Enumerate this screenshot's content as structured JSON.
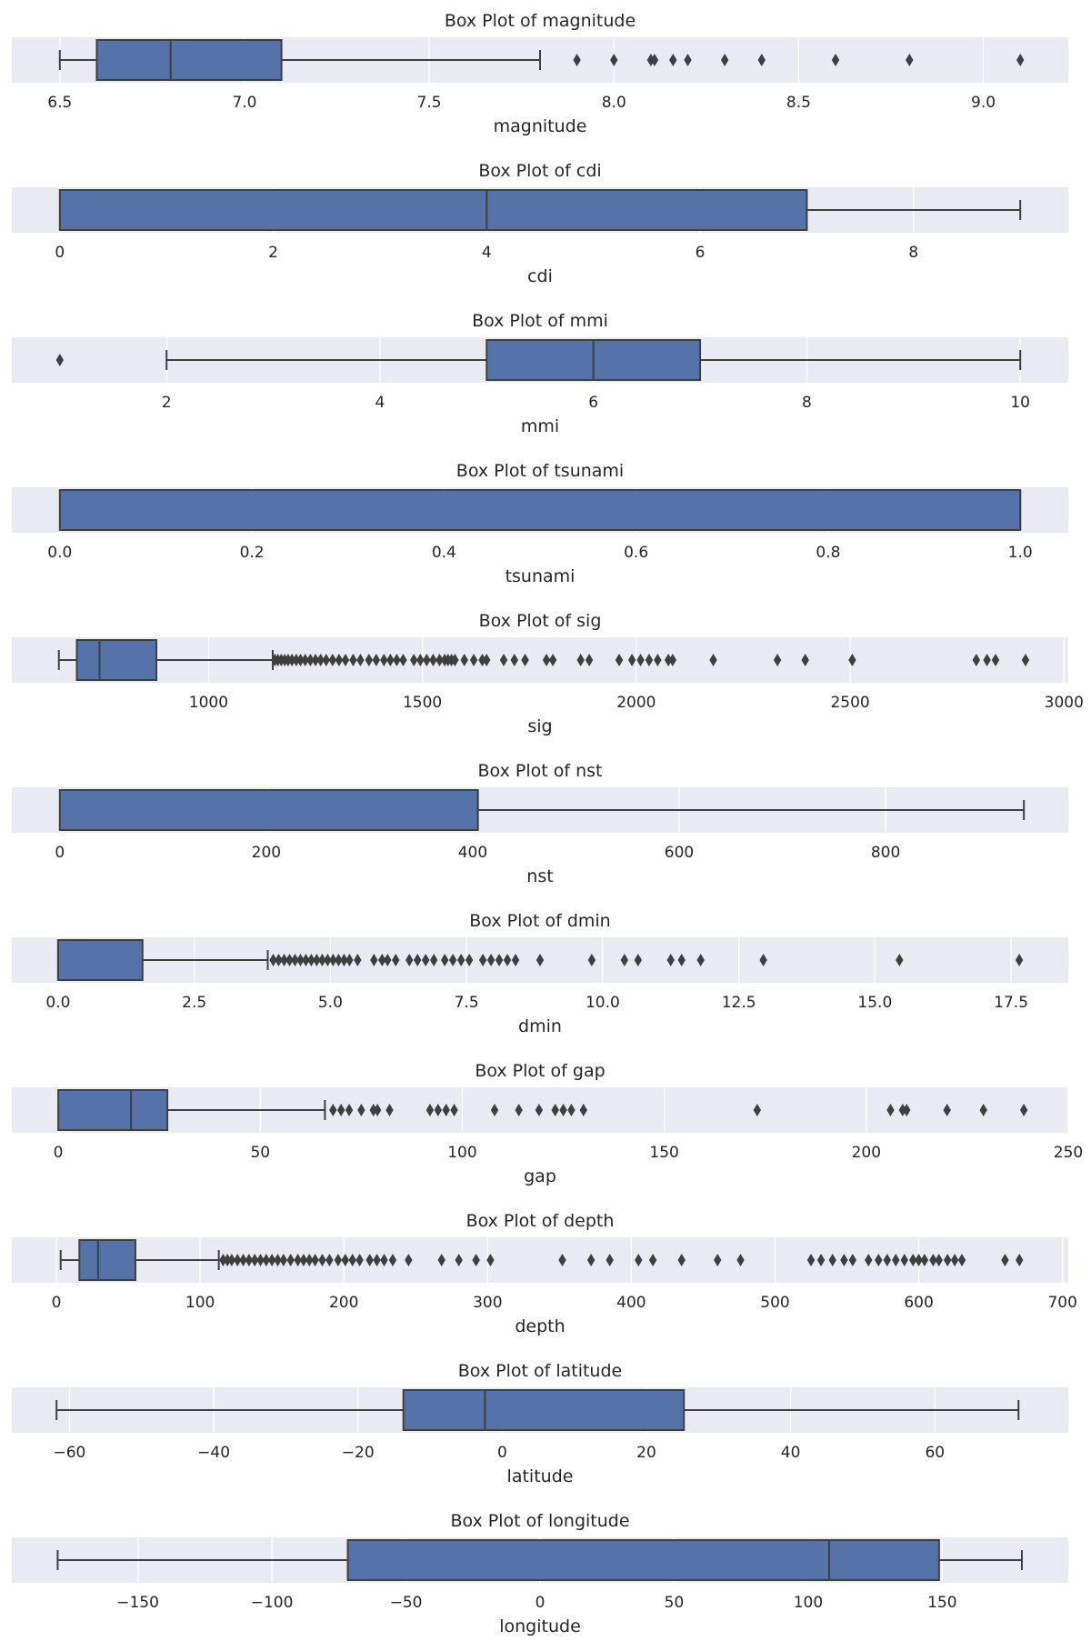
{
  "chart_data": [
    {
      "type": "box",
      "title": "Box Plot of magnitude",
      "xlabel": "magnitude",
      "xlim": [
        6.37,
        9.23
      ],
      "ticks": [
        6.5,
        7.0,
        7.5,
        8.0,
        8.5,
        9.0
      ],
      "tick_labels": [
        "6.5",
        "7.0",
        "7.5",
        "8.0",
        "8.5",
        "9.0"
      ],
      "whisker_low": 6.5,
      "q1": 6.6,
      "median": 6.8,
      "q3": 7.1,
      "whisker_high": 7.8,
      "outliers": [
        7.9,
        8.0,
        8.1,
        8.11,
        8.16,
        8.2,
        8.3,
        8.4,
        8.6,
        8.8,
        9.1
      ]
    },
    {
      "type": "box",
      "title": "Box Plot of cdi",
      "xlabel": "cdi",
      "xlim": [
        -0.45,
        9.45
      ],
      "ticks": [
        0,
        2,
        4,
        6,
        8
      ],
      "tick_labels": [
        "0",
        "2",
        "4",
        "6",
        "8"
      ],
      "whisker_low": 0,
      "q1": 0,
      "median": 4,
      "q3": 7,
      "whisker_high": 9,
      "outliers": []
    },
    {
      "type": "box",
      "title": "Box Plot of mmi",
      "xlabel": "mmi",
      "xlim": [
        0.55,
        10.45
      ],
      "ticks": [
        2,
        4,
        6,
        8,
        10
      ],
      "tick_labels": [
        "2",
        "4",
        "6",
        "8",
        "10"
      ],
      "whisker_low": 2,
      "q1": 5,
      "median": 6,
      "q3": 7,
      "whisker_high": 10,
      "outliers": [
        1
      ]
    },
    {
      "type": "box",
      "title": "Box Plot of tsunami",
      "xlabel": "tsunami",
      "xlim": [
        -0.05,
        1.05
      ],
      "ticks": [
        0.0,
        0.2,
        0.4,
        0.6,
        0.8,
        1.0
      ],
      "tick_labels": [
        "0.0",
        "0.2",
        "0.4",
        "0.6",
        "0.8",
        "1.0"
      ],
      "whisker_low": 0,
      "q1": 0,
      "median": 1,
      "q3": 1,
      "whisker_high": 1,
      "outliers": []
    },
    {
      "type": "box",
      "title": "Box Plot of sig",
      "xlabel": "sig",
      "xlim": [
        540,
        3010
      ],
      "ticks": [
        1000,
        1500,
        2000,
        2500,
        3000
      ],
      "tick_labels": [
        "1000",
        "1500",
        "2000",
        "2500",
        "3000"
      ],
      "whisker_low": 650,
      "q1": 692,
      "median": 745,
      "q3": 878,
      "whisker_high": 1150,
      "outliers": [
        1155,
        1162,
        1170,
        1178,
        1186,
        1195,
        1205,
        1215,
        1226,
        1238,
        1250,
        1262,
        1275,
        1290,
        1305,
        1320,
        1338,
        1355,
        1375,
        1392,
        1410,
        1425,
        1440,
        1455,
        1480,
        1495,
        1510,
        1525,
        1540,
        1552,
        1560,
        1568,
        1576,
        1598,
        1620,
        1640,
        1650,
        1690,
        1715,
        1740,
        1790,
        1805,
        1870,
        1890,
        1960,
        1990,
        2010,
        2030,
        2050,
        2075,
        2085,
        2180,
        2330,
        2395,
        2505,
        2795,
        2820,
        2840,
        2910
      ]
    },
    {
      "type": "box",
      "title": "Box Plot of nst",
      "xlabel": "nst",
      "xlim": [
        -46.5,
        977
      ],
      "ticks": [
        0,
        200,
        400,
        600,
        800
      ],
      "tick_labels": [
        "0",
        "200",
        "400",
        "600",
        "800"
      ],
      "whisker_low": 0,
      "q1": 0,
      "median": 405,
      "q3": 405,
      "whisker_high": 934,
      "outliers": []
    },
    {
      "type": "box",
      "title": "Box Plot of dmin",
      "xlabel": "dmin",
      "xlim": [
        -0.85,
        18.55
      ],
      "ticks": [
        0.0,
        2.5,
        5.0,
        7.5,
        10.0,
        12.5,
        15.0,
        17.5
      ],
      "tick_labels": [
        "0.0",
        "2.5",
        "5.0",
        "7.5",
        "10.0",
        "12.5",
        "15.0",
        "17.5"
      ],
      "whisker_low": 0,
      "q1": 0,
      "median": 0,
      "q3": 1.55,
      "whisker_high": 3.85,
      "outliers": [
        3.95,
        4.05,
        4.15,
        4.25,
        4.35,
        4.45,
        4.55,
        4.65,
        4.75,
        4.85,
        4.95,
        5.05,
        5.15,
        5.25,
        5.35,
        5.5,
        5.8,
        5.95,
        6.05,
        6.2,
        6.45,
        6.6,
        6.75,
        6.9,
        7.1,
        7.25,
        7.4,
        7.55,
        7.8,
        7.95,
        8.1,
        8.25,
        8.4,
        8.85,
        9.8,
        10.4,
        10.65,
        11.25,
        11.45,
        11.8,
        12.95,
        15.45,
        17.65
      ]
    },
    {
      "type": "box",
      "title": "Box Plot of gap",
      "xlabel": "gap",
      "xlim": [
        -11.5,
        250
      ],
      "ticks": [
        0,
        50,
        100,
        150,
        200,
        250
      ],
      "tick_labels": [
        "0",
        "50",
        "100",
        "150",
        "200",
        "250"
      ],
      "whisker_low": 0,
      "q1": 0,
      "median": 18,
      "q3": 27,
      "whisker_high": 66,
      "outliers": [
        68,
        70,
        72,
        75,
        78,
        79,
        82,
        92,
        94,
        96,
        98,
        108,
        114,
        119,
        123,
        125,
        127,
        130,
        173,
        206,
        209,
        210,
        220,
        229,
        239
      ]
    },
    {
      "type": "box",
      "title": "Box Plot of depth",
      "xlabel": "depth",
      "xlim": [
        -31,
        704
      ],
      "ticks": [
        0,
        100,
        200,
        300,
        400,
        500,
        600,
        700
      ],
      "tick_labels": [
        "0",
        "100",
        "200",
        "300",
        "400",
        "500",
        "600",
        "700"
      ],
      "whisker_low": 3,
      "q1": 16,
      "median": 29,
      "q3": 55,
      "whisker_high": 113,
      "outliers": [
        116,
        119,
        122,
        126,
        130,
        134,
        138,
        142,
        146,
        150,
        154,
        158,
        163,
        168,
        172,
        176,
        180,
        185,
        190,
        196,
        201,
        206,
        211,
        218,
        223,
        228,
        234,
        245,
        268,
        280,
        292,
        302,
        352,
        372,
        385,
        405,
        415,
        435,
        460,
        476,
        525,
        532,
        540,
        548,
        554,
        565,
        572,
        578,
        584,
        590,
        596,
        600,
        604,
        610,
        614,
        620,
        625,
        630,
        660,
        670
      ]
    },
    {
      "type": "box",
      "title": "Box Plot of latitude",
      "xlabel": "latitude",
      "xlim": [
        -68,
        78.5
      ],
      "ticks": [
        -60,
        -40,
        -20,
        0,
        20,
        40,
        60
      ],
      "tick_labels": [
        "−60",
        "−40",
        "−20",
        "0",
        "20",
        "40",
        "60"
      ],
      "whisker_low": -61.8,
      "q1": -13.7,
      "median": -2.4,
      "q3": 25.2,
      "whisker_high": 71.6,
      "outliers": []
    },
    {
      "type": "box",
      "title": "Box Plot of longitude",
      "xlabel": "longitude",
      "xlim": [
        -197,
        197
      ],
      "ticks": [
        -150,
        -100,
        -50,
        0,
        50,
        100,
        150
      ],
      "tick_labels": [
        "−150",
        "−100",
        "−50",
        "0",
        "50",
        "100",
        "150"
      ],
      "whisker_low": -179.9,
      "q1": -71.7,
      "median": 107.8,
      "q3": 148.8,
      "whisker_high": 179.7,
      "outliers": []
    }
  ],
  "colors": {
    "box_fill": "#5573a8",
    "line": "#3f3f3f",
    "panel_bg": "#eaeaf2",
    "grid": "#ffffff"
  }
}
